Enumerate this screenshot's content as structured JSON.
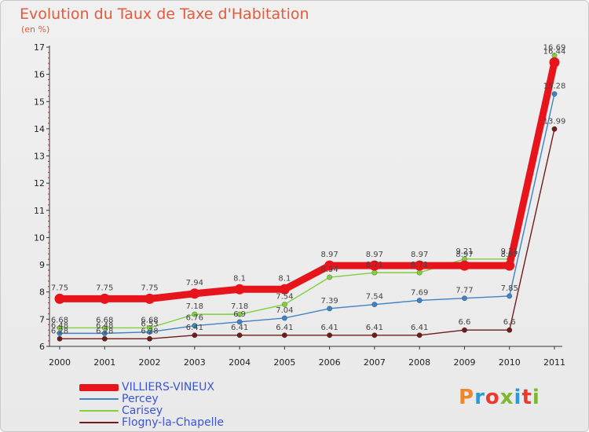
{
  "chart": {
    "title": "Evolution du Taux de Taxe d'Habitation",
    "unit": "(en %)"
  },
  "brand": {
    "letters": [
      "P",
      "r",
      "o",
      "x",
      "i",
      "t",
      "i"
    ],
    "colors": [
      "#f0862a",
      "#2c9ad6",
      "#e83a2e",
      "#7cb82f",
      "#2c9ad6",
      "#e83a2e",
      "#7cb82f"
    ]
  },
  "chart_data": {
    "type": "line",
    "title": "Evolution du Taux de Taxe d'Habitation",
    "ylabel": "(en %)",
    "xlabel": "",
    "x": [
      "2000",
      "2001",
      "2002",
      "2003",
      "2004",
      "2005",
      "2006",
      "2007",
      "2008",
      "2009",
      "2010",
      "2011"
    ],
    "ylim": [
      6,
      17
    ],
    "yticks": [
      "6",
      "7",
      "8",
      "9",
      "10",
      "11",
      "12",
      "13",
      "14",
      "15",
      "16",
      "17"
    ],
    "grid": false,
    "legend_position": "bottom-left",
    "series": [
      {
        "name": "VILLIERS-VINEUX",
        "color": "#e8141c",
        "labels": [
          "7.75",
          "7.75",
          "7.75",
          "7.94",
          "8.1",
          "8.1",
          "8.97",
          "8.97",
          "8.97",
          "8.97",
          "8.97",
          "16.44"
        ],
        "values": [
          7.75,
          7.75,
          7.75,
          7.94,
          8.1,
          8.1,
          8.97,
          8.97,
          8.97,
          8.97,
          8.97,
          16.44
        ]
      },
      {
        "name": "Percey",
        "color": "#3f82c4",
        "labels": [
          "6.48",
          "6.48",
          "6.53",
          "6.76",
          "6.9",
          "7.04",
          "7.39",
          "7.54",
          "7.69",
          "7.77",
          "7.85",
          "15.28"
        ],
        "values": [
          6.48,
          6.48,
          6.53,
          6.76,
          6.9,
          7.04,
          7.39,
          7.54,
          7.69,
          7.77,
          7.85,
          15.28
        ]
      },
      {
        "name": "Carisey",
        "color": "#7fd03a",
        "labels": [
          "6.68",
          "6.68",
          "6.68",
          "7.18",
          "7.18",
          "7.54",
          "8.54",
          "8.71",
          "8.71",
          "9.21",
          "9.21",
          "16.69"
        ],
        "values": [
          6.68,
          6.68,
          6.68,
          7.18,
          7.18,
          7.54,
          8.54,
          8.71,
          8.71,
          9.21,
          9.21,
          16.69
        ]
      },
      {
        "name": "Flogny-la-Chapelle",
        "color": "#6e1c1c",
        "labels": [
          "6.28",
          "6.28",
          "6.28",
          "6.41",
          "6.41",
          "6.41",
          "6.41",
          "6.41",
          "6.41",
          "6.6",
          "6.6",
          "13.99"
        ],
        "values": [
          6.28,
          6.28,
          6.28,
          6.41,
          6.41,
          6.41,
          6.41,
          6.41,
          6.41,
          6.6,
          6.6,
          13.99
        ]
      }
    ]
  }
}
